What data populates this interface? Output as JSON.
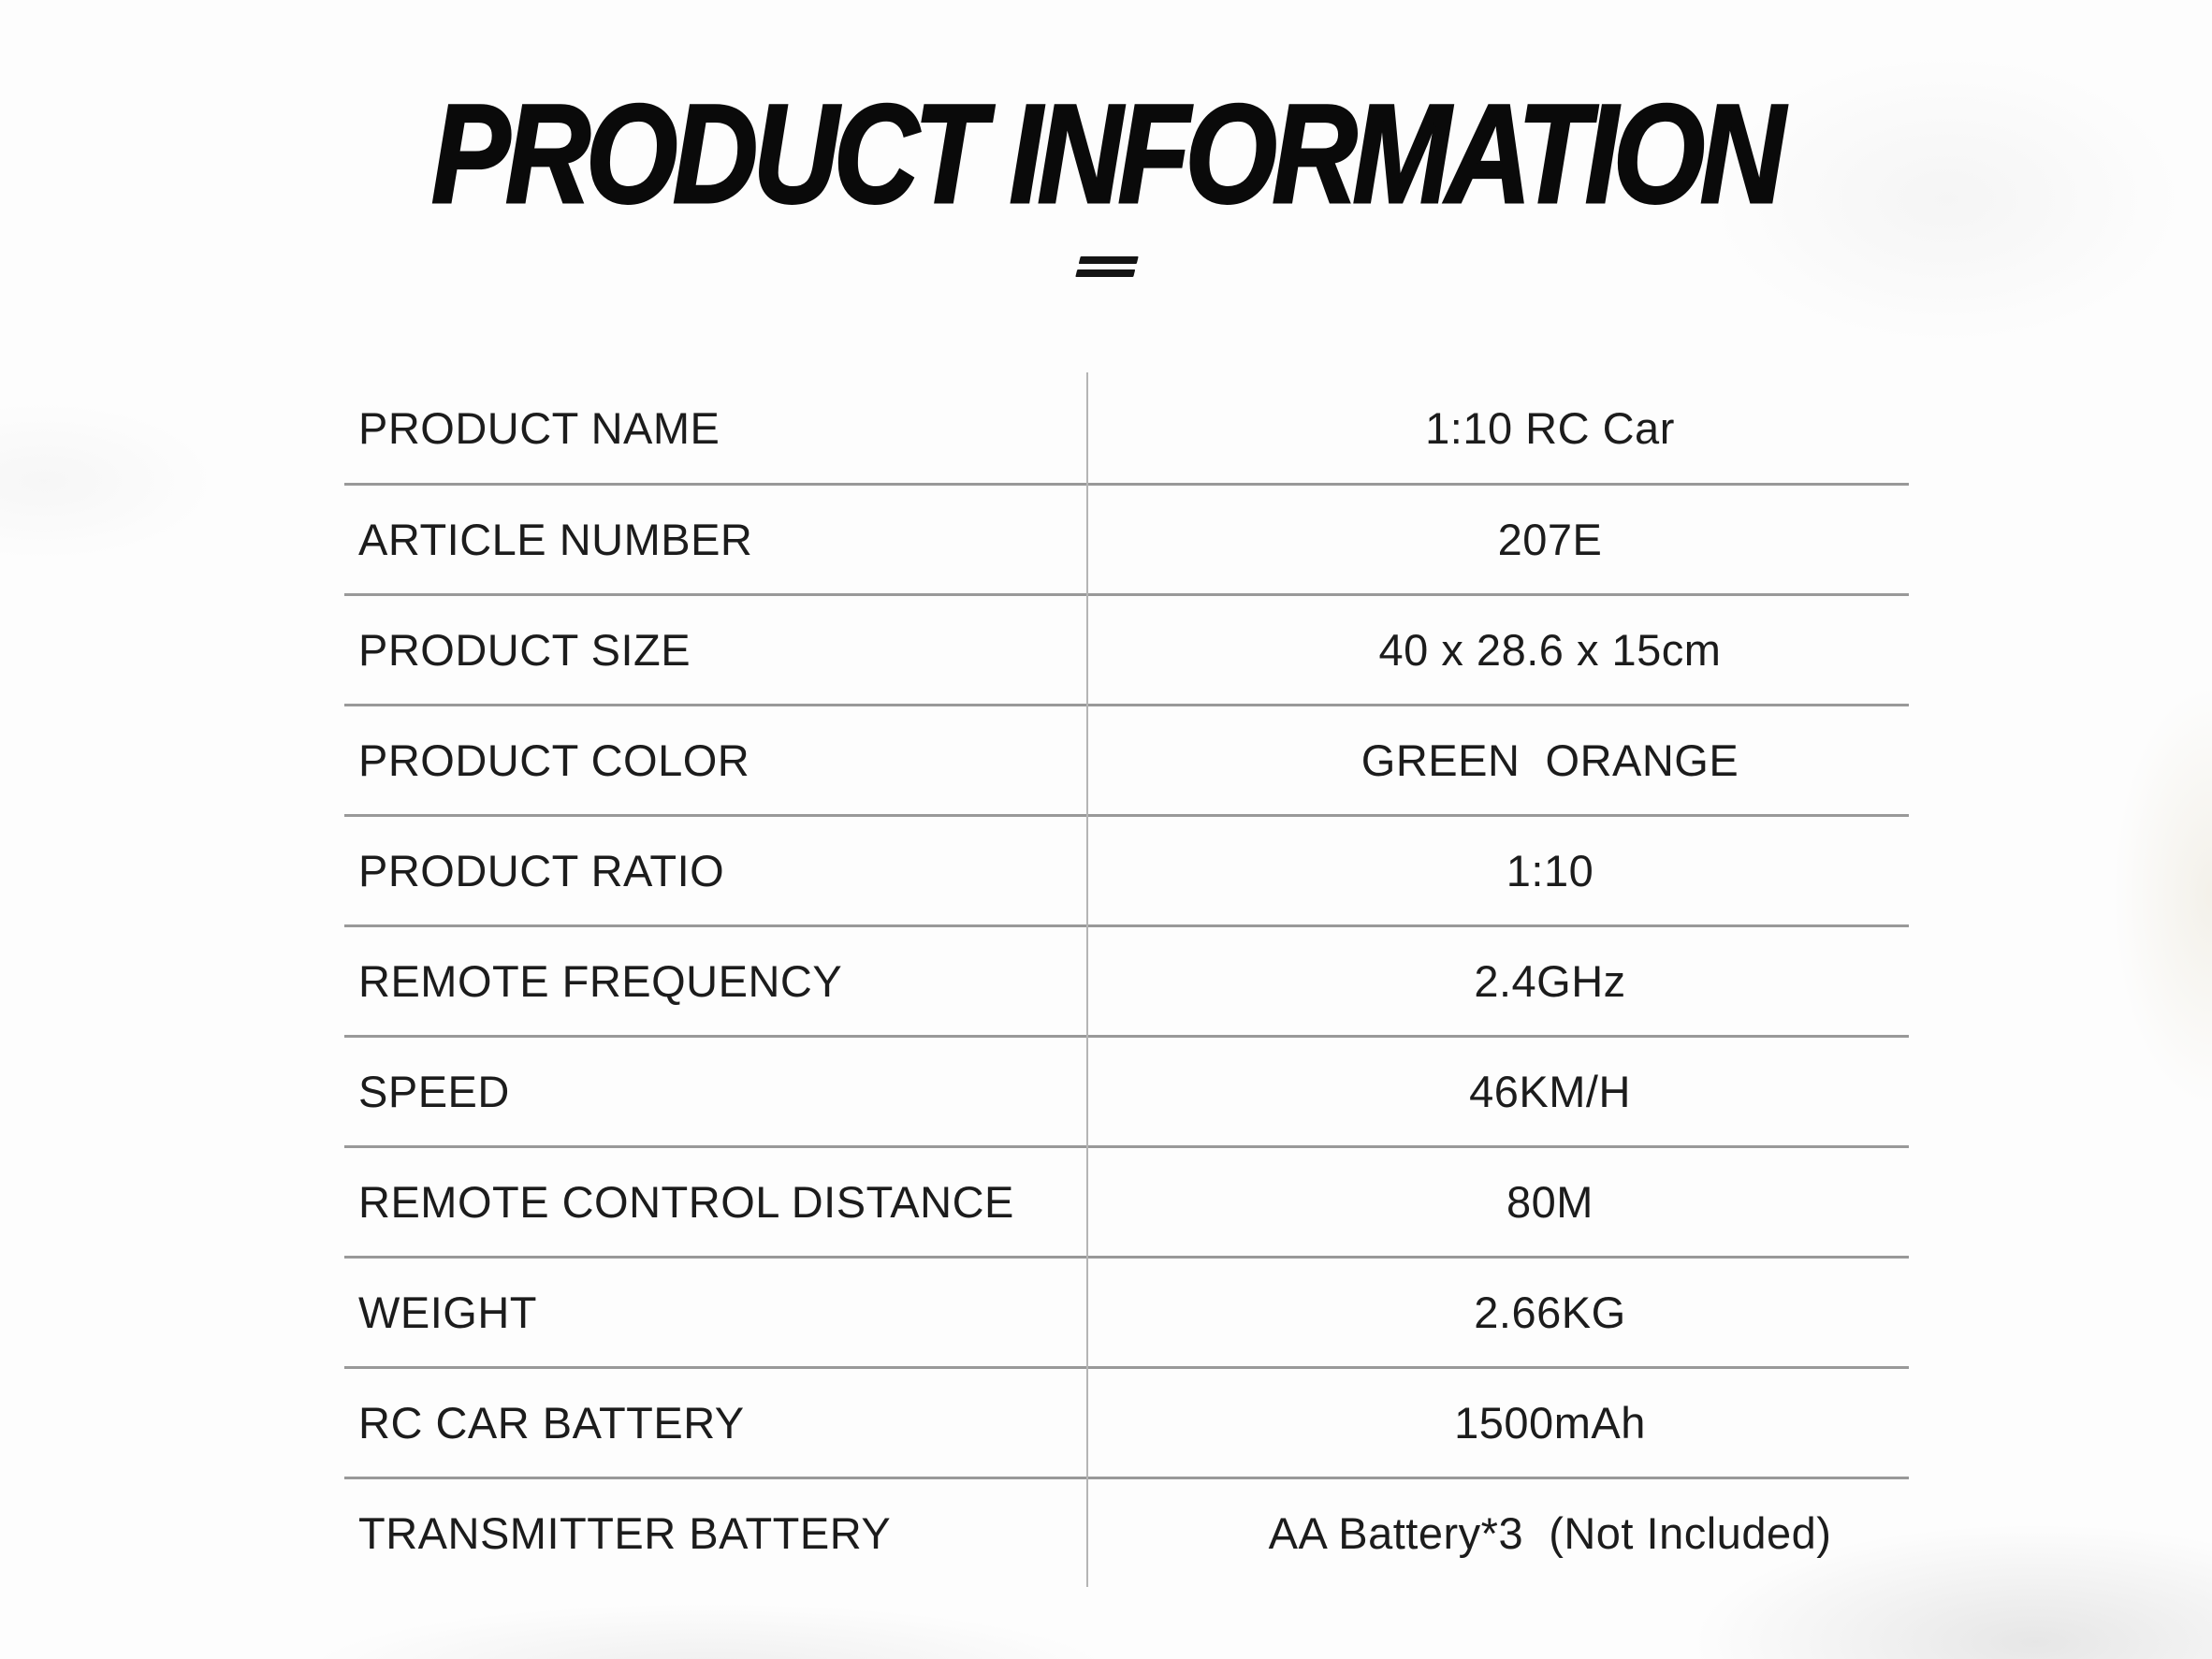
{
  "header": {
    "title": "PRODUCT INFORMATION",
    "decoration_icon": "equals-mark"
  },
  "colors": {
    "text_primary": "#1a1a1a",
    "title": "#0a0a0a",
    "row_separator": "#999999",
    "column_divider": "#b5b5b5",
    "background": "#fdfdfd"
  },
  "table": {
    "rows": [
      {
        "label": "PRODUCT NAME",
        "value": "1:10 RC Car"
      },
      {
        "label": "ARTICLE NUMBER",
        "value": "207E"
      },
      {
        "label": "PRODUCT SIZE",
        "value": "40 x 28.6 x 15cm"
      },
      {
        "label": "PRODUCT COLOR",
        "value": "GREEN  ORANGE"
      },
      {
        "label": "PRODUCT RATIO",
        "value": "1:10"
      },
      {
        "label": "REMOTE FREQUENCY",
        "value": "2.4GHz"
      },
      {
        "label": "SPEED",
        "value": "46KM/H"
      },
      {
        "label": "REMOTE CONTROL DISTANCE",
        "value": "80M"
      },
      {
        "label": "WEIGHT",
        "value": "2.66KG"
      },
      {
        "label": "RC CAR BATTERY",
        "value": "1500mAh"
      },
      {
        "label": "TRANSMITTER BATTERY",
        "value": "AA Battery*3  (Not Included)"
      }
    ]
  }
}
